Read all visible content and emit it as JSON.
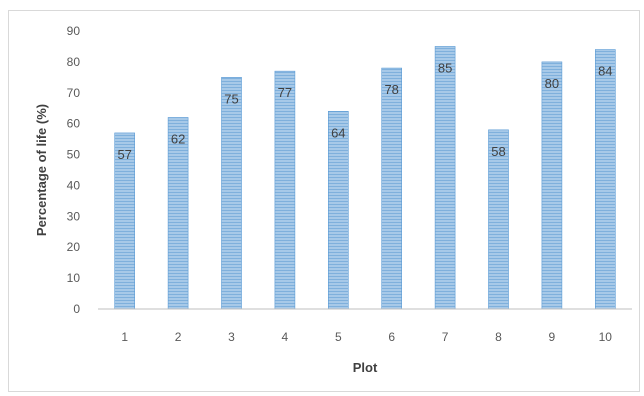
{
  "chart_data": {
    "type": "bar",
    "title": "",
    "xlabel": "Plot",
    "ylabel": "Percentage of life (%)",
    "categories": [
      "1",
      "2",
      "3",
      "4",
      "5",
      "6",
      "7",
      "8",
      "9",
      "10"
    ],
    "values": [
      57,
      62,
      75,
      77,
      64,
      78,
      85,
      58,
      80,
      84
    ],
    "ylim": [
      0,
      90
    ],
    "yticks": [
      "0",
      "10",
      "20",
      "30",
      "40",
      "50",
      "60",
      "70",
      "80",
      "90"
    ],
    "grid": false,
    "legend": "none",
    "colors": {
      "bar": "#9dc3e6",
      "bar_stripe": "#7fb0dc",
      "bar_edge": "#5b9bd5",
      "axis": "#bfbfbf",
      "text": "#595959"
    }
  }
}
